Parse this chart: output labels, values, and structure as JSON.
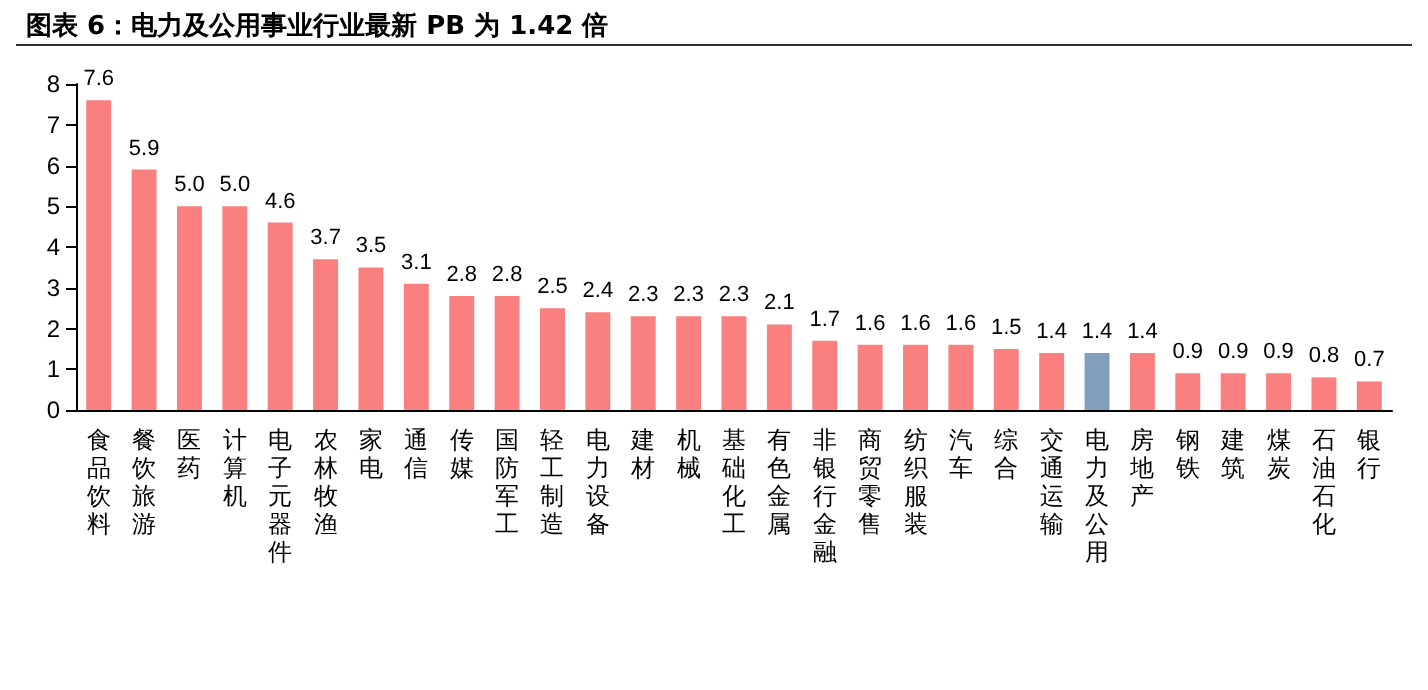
{
  "chart_data": {
    "type": "bar",
    "title": "图表 6：电力及公用事业行业最新 PB 为 1.42 倍",
    "categories": [
      "食品饮料",
      "餐饮旅游",
      "医药",
      "计算机",
      "电子元器件",
      "农林牧渔",
      "家电",
      "通信",
      "传媒",
      "国防军工",
      "轻工制造",
      "电力设备",
      "建材",
      "机械",
      "基础化工",
      "有色金属",
      "非银行金融",
      "商贸零售",
      "纺织服装",
      "汽车",
      "综合",
      "交通运输",
      "电力及公用",
      "房地产",
      "钢铁",
      "建筑",
      "煤炭",
      "石油石化",
      "银行"
    ],
    "values": [
      7.6,
      5.9,
      5.0,
      5.0,
      4.6,
      3.7,
      3.5,
      3.1,
      2.8,
      2.8,
      2.5,
      2.4,
      2.3,
      2.3,
      2.3,
      2.1,
      1.7,
      1.6,
      1.6,
      1.6,
      1.5,
      1.4,
      1.4,
      1.4,
      0.9,
      0.9,
      0.9,
      0.8,
      0.7
    ],
    "value_labels": [
      "7.6",
      "5.9",
      "5.0",
      "5.0",
      "4.6",
      "3.7",
      "3.5",
      "3.1",
      "2.8",
      "2.8",
      "2.5",
      "2.4",
      "2.3",
      "2.3",
      "2.3",
      "2.1",
      "1.7",
      "1.6",
      "1.6",
      "1.6",
      "1.5",
      "1.4",
      "1.4",
      "1.4",
      "0.9",
      "0.9",
      "0.9",
      "0.8",
      "0.7"
    ],
    "colors": [
      "#fa8080",
      "#fa8080",
      "#fa8080",
      "#fa8080",
      "#fa8080",
      "#fa8080",
      "#fa8080",
      "#fa8080",
      "#fa8080",
      "#fa8080",
      "#fa8080",
      "#fa8080",
      "#fa8080",
      "#fa8080",
      "#fa8080",
      "#fa8080",
      "#fa8080",
      "#fa8080",
      "#fa8080",
      "#fa8080",
      "#fa8080",
      "#fa8080",
      "#7f9fbd",
      "#fa8080",
      "#fa8080",
      "#fa8080",
      "#fa8080",
      "#fa8080",
      "#fa8080"
    ],
    "ylim": [
      0,
      8
    ],
    "yticks": [
      0,
      1,
      2,
      3,
      4,
      5,
      6,
      7,
      8
    ],
    "grid": false
  }
}
